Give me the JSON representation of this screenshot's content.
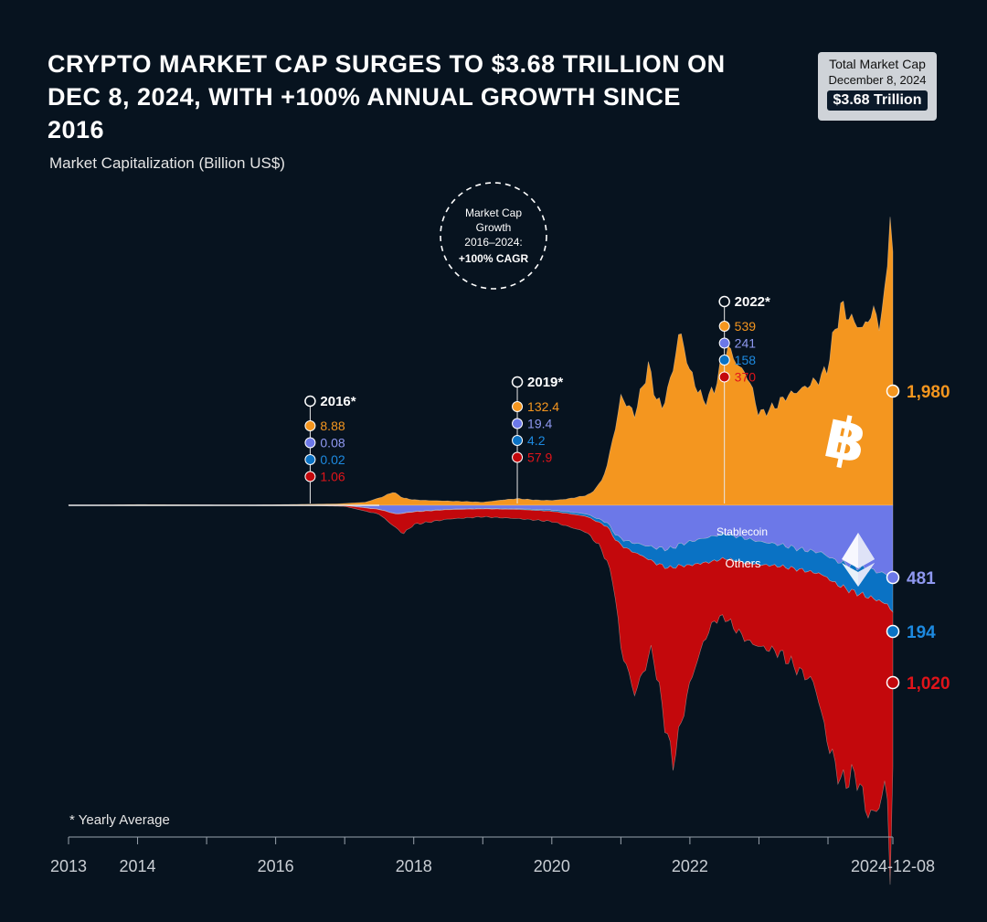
{
  "title": "Crypto Market Cap Surges to $3.68 Trillion on Dec 8, 2024, with +100% Annual Growth Since 2016",
  "total_box": {
    "label": "Total Market Cap",
    "date": "December 8, 2024",
    "value": "$3.68 Trillion"
  },
  "footnote": "* Yearly Average",
  "cagr_badge": {
    "line1": "Market Cap",
    "line2": "Growth",
    "line3": "2016–2024:",
    "line4": "+100% CAGR"
  },
  "colors": {
    "background": "#07131f",
    "bitcoin": "#f4961f",
    "ethereum": "#6c78e8",
    "stablecoin": "#0a72c4",
    "others": "#c3080c"
  },
  "chart_data": {
    "type": "area",
    "ylabel": "Market Capitalization (Billion US$)",
    "xlabel": "",
    "x_ticks": [
      "2013",
      "2014",
      "2016",
      "2018",
      "2020",
      "2022",
      "2024-12-08"
    ],
    "x_range": [
      2013.0,
      2024.94
    ],
    "series": [
      {
        "name": "Bitcoin",
        "direction": "up",
        "color": "#f4961f",
        "x": [
          2013.0,
          2013.5,
          2014.0,
          2014.5,
          2015.0,
          2015.5,
          2016.0,
          2016.5,
          2016.9,
          2017.3,
          2017.55,
          2017.7,
          2017.85,
          2018.0,
          2018.2,
          2018.5,
          2018.8,
          2019.0,
          2019.3,
          2019.5,
          2019.8,
          2020.0,
          2020.2,
          2020.4,
          2020.55,
          2020.7,
          2020.8,
          2020.88,
          2020.93,
          2021.0,
          2021.1,
          2021.2,
          2021.3,
          2021.4,
          2021.5,
          2021.6,
          2021.75,
          2021.85,
          2022.0,
          2022.2,
          2022.35,
          2022.45,
          2022.55,
          2022.7,
          2022.85,
          2023.0,
          2023.2,
          2023.4,
          2023.6,
          2023.75,
          2023.9,
          2024.0,
          2024.1,
          2024.2,
          2024.3,
          2024.5,
          2024.65,
          2024.75,
          2024.82,
          2024.88,
          2024.91,
          2024.94
        ],
        "values": [
          2,
          3,
          6,
          5,
          4,
          3,
          5,
          9,
          12,
          25,
          70,
          110,
          60,
          45,
          40,
          35,
          30,
          25,
          45,
          55,
          42,
          40,
          50,
          70,
          90,
          180,
          320,
          550,
          650,
          900,
          820,
          750,
          950,
          1150,
          900,
          800,
          1100,
          1450,
          1100,
          850,
          950,
          1150,
          1300,
          1150,
          1050,
          750,
          800,
          900,
          950,
          1000,
          1050,
          1150,
          1450,
          1650,
          1550,
          1450,
          1600,
          1500,
          1700,
          2200,
          2600,
          1980
        ]
      },
      {
        "name": "Ethereum",
        "direction": "down",
        "color": "#6c78e8",
        "x": [
          2013.0,
          2016.5,
          2017.0,
          2017.5,
          2017.75,
          2018.0,
          2018.5,
          2019.0,
          2019.5,
          2020.0,
          2020.5,
          2020.8,
          2020.95,
          2021.1,
          2021.3,
          2021.5,
          2021.7,
          2021.85,
          2022.1,
          2022.3,
          2022.5,
          2022.8,
          2023.0,
          2023.3,
          2023.6,
          2023.9,
          2024.1,
          2024.3,
          2024.5,
          2024.7,
          2024.85,
          2024.94
        ],
        "values": [
          0,
          0.1,
          0.8,
          25,
          55,
          40,
          25,
          20,
          22,
          30,
          55,
          110,
          200,
          230,
          250,
          270,
          280,
          250,
          220,
          200,
          180,
          210,
          230,
          250,
          280,
          300,
          350,
          380,
          400,
          420,
          440,
          481
        ]
      },
      {
        "name": "Stablecoin",
        "direction": "down",
        "color": "#0a72c4",
        "label": "Stablecoin",
        "x": [
          2013.0,
          2017.0,
          2018.0,
          2019.0,
          2019.5,
          2020.0,
          2020.5,
          2020.8,
          2021.0,
          2021.3,
          2021.6,
          2022.0,
          2022.3,
          2022.5,
          2022.8,
          2023.2,
          2023.6,
          2024.0,
          2024.4,
          2024.7,
          2024.94
        ],
        "values": [
          0,
          1,
          2,
          3,
          4.2,
          8,
          15,
          25,
          40,
          70,
          110,
          150,
          160,
          158,
          155,
          140,
          130,
          140,
          165,
          180,
          194
        ]
      },
      {
        "name": "Others",
        "direction": "down",
        "color": "#c3080c",
        "label": "Others",
        "x": [
          2013.0,
          2016.5,
          2017.0,
          2017.5,
          2017.75,
          2017.85,
          2018.0,
          2018.5,
          2019.0,
          2019.5,
          2020.0,
          2020.5,
          2020.7,
          2020.9,
          2021.0,
          2021.2,
          2021.35,
          2021.45,
          2021.6,
          2021.75,
          2021.85,
          2022.0,
          2022.2,
          2022.35,
          2022.5,
          2022.7,
          2022.85,
          2023.0,
          2023.3,
          2023.6,
          2023.8,
          2024.0,
          2024.2,
          2024.4,
          2024.6,
          2024.75,
          2024.85,
          2024.9,
          2024.94
        ],
        "values": [
          0,
          1.06,
          5,
          30,
          90,
          130,
          80,
          60,
          50,
          57.9,
          65,
          100,
          150,
          300,
          650,
          900,
          700,
          550,
          900,
          1250,
          1050,
          750,
          500,
          380,
          370,
          450,
          500,
          520,
          550,
          650,
          700,
          1050,
          1250,
          1150,
          1400,
          1300,
          1100,
          1700,
          1020
        ]
      }
    ],
    "annotations": [
      {
        "year_label": "2016*",
        "x": 2016.5,
        "bitcoin": "8.88",
        "ethereum": "0.08",
        "stablecoin": "0.02",
        "others": "1.06"
      },
      {
        "year_label": "2019*",
        "x": 2019.5,
        "bitcoin": "132.4",
        "ethereum": "19.4",
        "stablecoin": "4.2",
        "others": "57.9"
      },
      {
        "year_label": "2022*",
        "x": 2022.5,
        "bitcoin": "539",
        "ethereum": "241",
        "stablecoin": "158",
        "others": "370"
      }
    ],
    "end_labels": [
      {
        "series": "Bitcoin",
        "text": "1,980",
        "color": "#f4961f"
      },
      {
        "series": "Ethereum",
        "text": "481",
        "color": "#8f98f0"
      },
      {
        "series": "Stablecoin",
        "text": "194",
        "color": "#1d8ae0"
      },
      {
        "series": "Others",
        "text": "1,020",
        "color": "#e0141a"
      }
    ]
  }
}
